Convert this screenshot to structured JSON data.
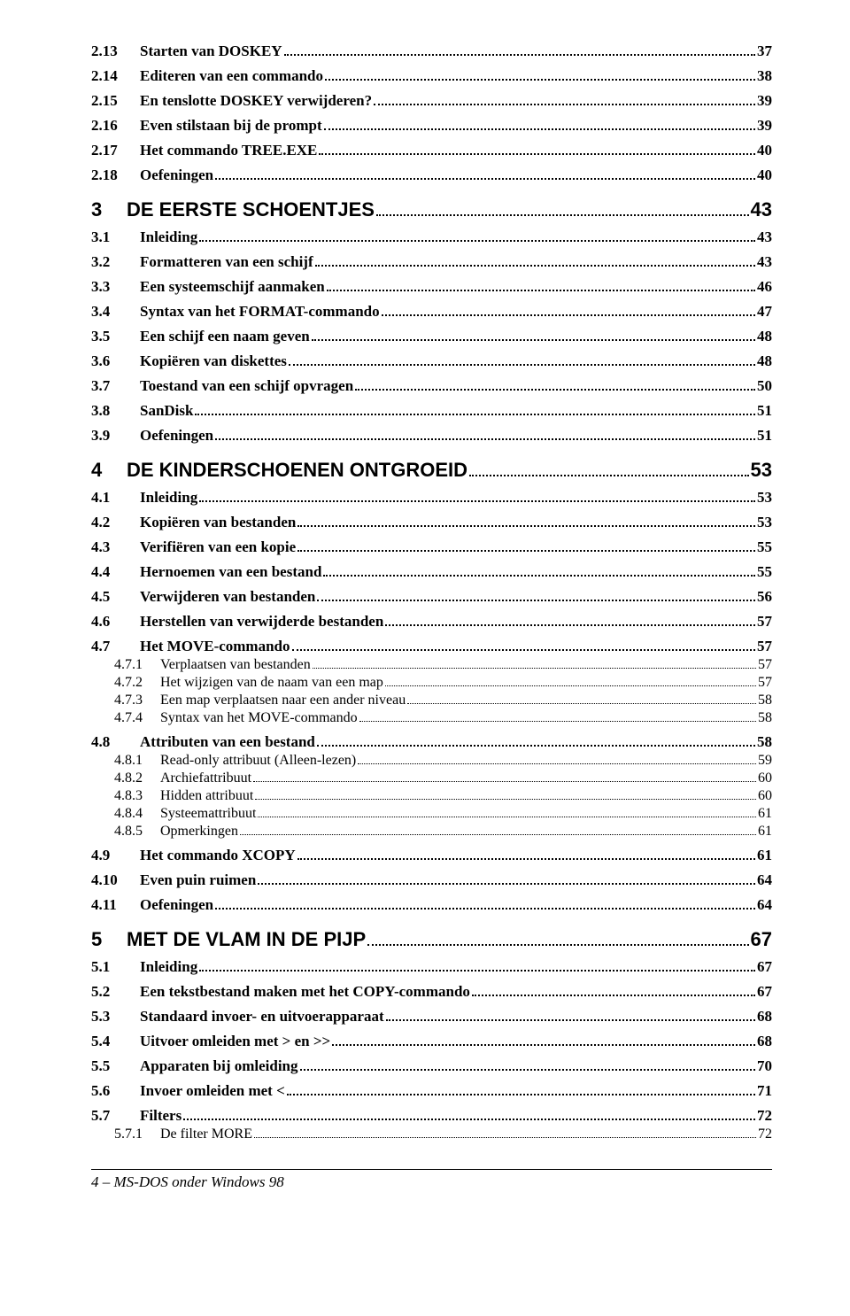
{
  "toc": [
    {
      "level": 2,
      "num": "2.13",
      "title": "Starten van DOSKEY",
      "page": "37"
    },
    {
      "level": 2,
      "num": "2.14",
      "title": "Editeren van een commando",
      "page": "38"
    },
    {
      "level": 2,
      "num": "2.15",
      "title": "En tenslotte DOSKEY verwijderen?",
      "page": "39"
    },
    {
      "level": 2,
      "num": "2.16",
      "title": "Even stilstaan bij de prompt",
      "page": "39"
    },
    {
      "level": 2,
      "num": "2.17",
      "title": "Het commando TREE.EXE",
      "page": "40"
    },
    {
      "level": 2,
      "num": "2.18",
      "title": "Oefeningen",
      "page": "40"
    },
    {
      "level": 1,
      "num": "3",
      "title": "DE EERSTE SCHOENTJES",
      "page": "43"
    },
    {
      "level": 2,
      "num": "3.1",
      "title": "Inleiding",
      "page": "43"
    },
    {
      "level": 2,
      "num": "3.2",
      "title": "Formatteren van een schijf",
      "page": "43"
    },
    {
      "level": 2,
      "num": "3.3",
      "title": "Een systeemschijf aanmaken",
      "page": "46"
    },
    {
      "level": 2,
      "num": "3.4",
      "title": "Syntax van het FORMAT-commando",
      "page": "47"
    },
    {
      "level": 2,
      "num": "3.5",
      "title": "Een schijf een naam geven",
      "page": "48"
    },
    {
      "level": 2,
      "num": "3.6",
      "title": "Kopiëren van diskettes",
      "page": "48"
    },
    {
      "level": 2,
      "num": "3.7",
      "title": "Toestand van een schijf opvragen",
      "page": "50"
    },
    {
      "level": 2,
      "num": "3.8",
      "title": "SanDisk",
      "page": "51"
    },
    {
      "level": 2,
      "num": "3.9",
      "title": "Oefeningen",
      "page": "51"
    },
    {
      "level": 1,
      "num": "4",
      "title": "DE KINDERSCHOENEN ONTGROEID",
      "page": "53"
    },
    {
      "level": 2,
      "num": "4.1",
      "title": "Inleiding",
      "page": "53"
    },
    {
      "level": 2,
      "num": "4.2",
      "title": "Kopiëren van bestanden",
      "page": "53"
    },
    {
      "level": 2,
      "num": "4.3",
      "title": "Verifiëren van een kopie",
      "page": "55"
    },
    {
      "level": 2,
      "num": "4.4",
      "title": "Hernoemen van een bestand",
      "page": "55"
    },
    {
      "level": 2,
      "num": "4.5",
      "title": "Verwijderen van bestanden",
      "page": "56"
    },
    {
      "level": 2,
      "num": "4.6",
      "title": "Herstellen van verwijderde bestanden",
      "page": "57"
    },
    {
      "level": 2,
      "num": "4.7",
      "title": "Het MOVE-commando",
      "page": "57"
    },
    {
      "level": 3,
      "num": "4.7.1",
      "title": "Verplaatsen van bestanden",
      "page": "57"
    },
    {
      "level": 3,
      "num": "4.7.2",
      "title": "Het wijzigen van de naam van een map",
      "page": "57"
    },
    {
      "level": 3,
      "num": "4.7.3",
      "title": "Een map verplaatsen naar een ander niveau",
      "page": "58"
    },
    {
      "level": 3,
      "num": "4.7.4",
      "title": "Syntax van het MOVE-commando",
      "page": "58"
    },
    {
      "level": 2,
      "num": "4.8",
      "title": "Attributen van een bestand",
      "page": "58"
    },
    {
      "level": 3,
      "num": "4.8.1",
      "title": "Read-only attribuut (Alleen-lezen)",
      "page": "59"
    },
    {
      "level": 3,
      "num": "4.8.2",
      "title": "Archiefattribuut",
      "page": "60"
    },
    {
      "level": 3,
      "num": "4.8.3",
      "title": "Hidden attribuut",
      "page": "60"
    },
    {
      "level": 3,
      "num": "4.8.4",
      "title": "Systeemattribuut",
      "page": "61"
    },
    {
      "level": 3,
      "num": "4.8.5",
      "title": "Opmerkingen",
      "page": "61"
    },
    {
      "level": 2,
      "num": "4.9",
      "title": "Het commando XCOPY",
      "page": "61"
    },
    {
      "level": 2,
      "num": "4.10",
      "title": "Even puin ruimen",
      "page": "64"
    },
    {
      "level": 2,
      "num": "4.11",
      "title": "Oefeningen",
      "page": "64"
    },
    {
      "level": 1,
      "num": "5",
      "title": "MET DE VLAM IN DE PIJP",
      "page": "67"
    },
    {
      "level": 2,
      "num": "5.1",
      "title": "Inleiding",
      "page": "67"
    },
    {
      "level": 2,
      "num": "5.2",
      "title": "Een tekstbestand maken met het COPY-commando",
      "page": "67"
    },
    {
      "level": 2,
      "num": "5.3",
      "title": "Standaard invoer- en uitvoerapparaat",
      "page": "68"
    },
    {
      "level": 2,
      "num": "5.4",
      "title": "Uitvoer omleiden met > en >>",
      "page": "68"
    },
    {
      "level": 2,
      "num": "5.5",
      "title": "Apparaten bij omleiding",
      "page": "70"
    },
    {
      "level": 2,
      "num": "5.6",
      "title": "Invoer omleiden met <",
      "page": "71"
    },
    {
      "level": 2,
      "num": "5.7",
      "title": "Filters",
      "page": "72"
    },
    {
      "level": 3,
      "num": "5.7.1",
      "title": "De filter MORE",
      "page": "72"
    }
  ],
  "footer": "4 – MS-DOS onder Windows 98"
}
